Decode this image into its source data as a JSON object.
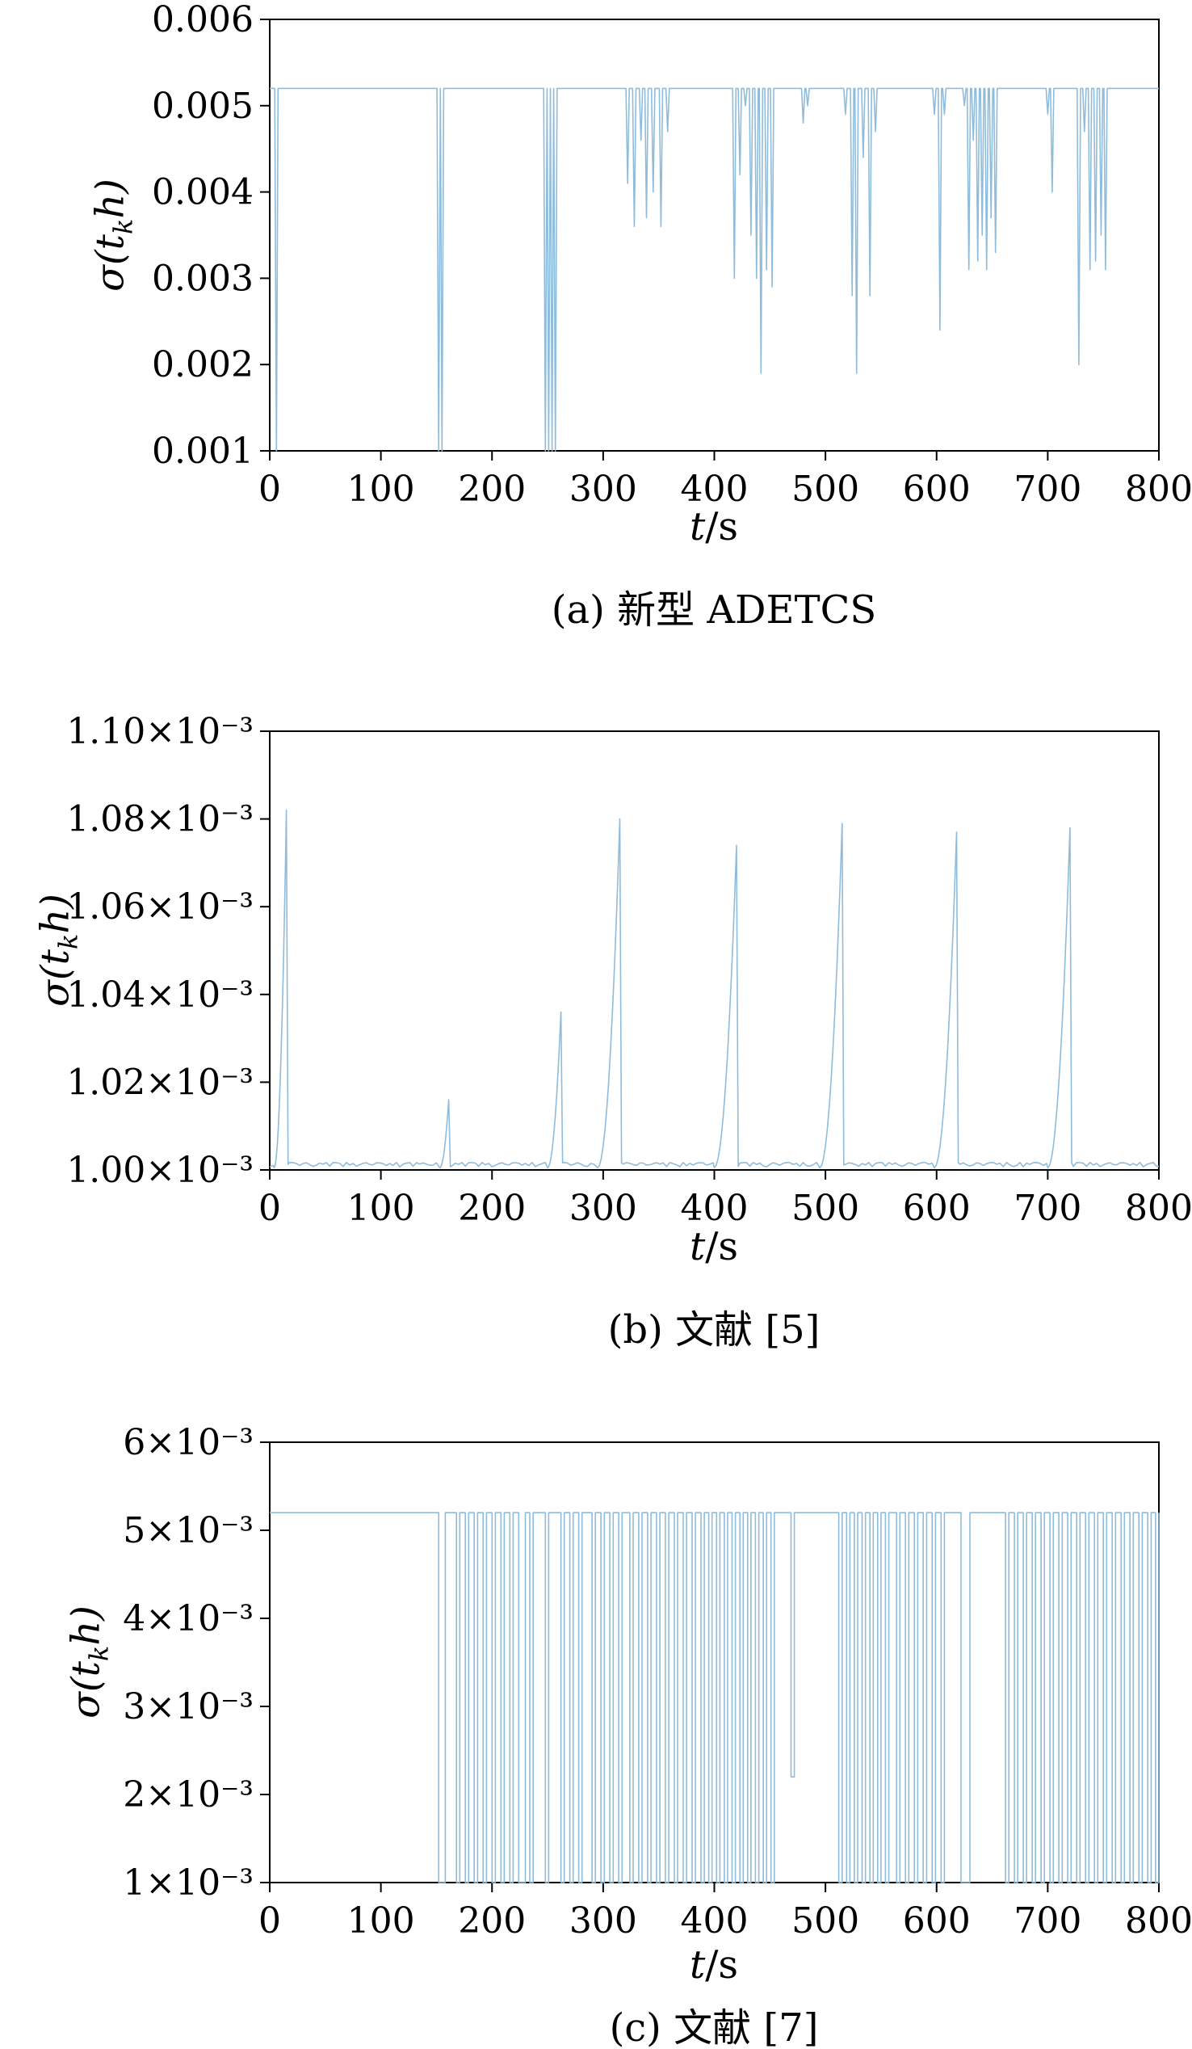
{
  "colors": {
    "line": "#8fbcdb",
    "axis": "#000000"
  },
  "axis_labels": {
    "y_pre": "σ(t",
    "y_sub": "k",
    "y_post": "h)",
    "x_italic": "t",
    "x_rest": "/s"
  },
  "chart_data": [
    {
      "type": "line",
      "subtype": "spikes",
      "title": "(a) 新型 ADETCS",
      "xlabel": "t/s",
      "ylabel": "σ(t_k h)",
      "xlim": [
        0,
        800
      ],
      "ylim": [
        0.001,
        0.006
      ],
      "xticks": [
        0,
        100,
        200,
        300,
        400,
        500,
        600,
        700,
        800
      ],
      "ytick_values": [
        0.001,
        0.002,
        0.003,
        0.004,
        0.005,
        0.006
      ],
      "ytick_labels": [
        "0.001",
        "0.002",
        "0.003",
        "0.004",
        "0.005",
        "0.006"
      ],
      "baseline": 0.0052,
      "spikes": [
        [
          6,
          0.001
        ],
        [
          152,
          0.001
        ],
        [
          155,
          0.001
        ],
        [
          248,
          0.001
        ],
        [
          251,
          0.001
        ],
        [
          254,
          0.001
        ],
        [
          257,
          0.001
        ],
        [
          322,
          0.0041
        ],
        [
          328,
          0.0036
        ],
        [
          334,
          0.0046
        ],
        [
          339,
          0.0037
        ],
        [
          345,
          0.004
        ],
        [
          352,
          0.0036
        ],
        [
          358,
          0.0047
        ],
        [
          418,
          0.003
        ],
        [
          423,
          0.0042
        ],
        [
          428,
          0.005
        ],
        [
          433,
          0.0035
        ],
        [
          438,
          0.003
        ],
        [
          442,
          0.0019
        ],
        [
          447,
          0.0031
        ],
        [
          452,
          0.0029
        ],
        [
          480,
          0.0048
        ],
        [
          484,
          0.005
        ],
        [
          518,
          0.0049
        ],
        [
          524,
          0.0028
        ],
        [
          528,
          0.0019
        ],
        [
          534,
          0.0044
        ],
        [
          540,
          0.0028
        ],
        [
          545,
          0.0047
        ],
        [
          598,
          0.0049
        ],
        [
          603,
          0.0024
        ],
        [
          607,
          0.0049
        ],
        [
          625,
          0.005
        ],
        [
          629,
          0.0031
        ],
        [
          633,
          0.0046
        ],
        [
          637,
          0.0032
        ],
        [
          641,
          0.0035
        ],
        [
          645,
          0.0031
        ],
        [
          649,
          0.0037
        ],
        [
          653,
          0.0033
        ],
        [
          700,
          0.0049
        ],
        [
          704,
          0.004
        ],
        [
          728,
          0.002
        ],
        [
          733,
          0.0047
        ],
        [
          738,
          0.0031
        ],
        [
          743,
          0.0032
        ],
        [
          748,
          0.0035
        ],
        [
          752,
          0.0031
        ]
      ]
    },
    {
      "type": "line",
      "subtype": "sawtooth",
      "title": "(b) 文献 [5]",
      "xlabel": "t/s",
      "ylabel": "σ(t_k h)",
      "xlim": [
        0,
        800
      ],
      "ylim": [
        0.001,
        0.0011
      ],
      "xticks": [
        0,
        100,
        200,
        300,
        400,
        500,
        600,
        700,
        800
      ],
      "ytick_values": [
        0.001,
        0.00102,
        0.00104,
        0.00106,
        0.00108,
        0.0011
      ],
      "ytick_labels": [
        "1.00×10⁻³",
        "1.02×10⁻³",
        "1.04×10⁻³",
        "1.06×10⁻³",
        "1.08×10⁻³",
        "1.10×10⁻³"
      ],
      "baseline": 0.0010005,
      "noise_amp": 1.2e-06,
      "peaks": [
        [
          4,
          15,
          0.001082
        ],
        [
          153,
          161,
          0.001016
        ],
        [
          250,
          262,
          0.001036
        ],
        [
          295,
          315,
          0.00108
        ],
        [
          400,
          420,
          0.001074
        ],
        [
          495,
          515,
          0.001079
        ],
        [
          598,
          618,
          0.001077
        ],
        [
          700,
          720,
          0.001078
        ]
      ]
    },
    {
      "type": "line",
      "subtype": "square",
      "title": "(c) 文献 [7]",
      "xlabel": "t/s",
      "ylabel": "σ(t_k h)",
      "xlim": [
        0,
        800
      ],
      "ylim": [
        0.001,
        0.006
      ],
      "xticks": [
        0,
        100,
        200,
        300,
        400,
        500,
        600,
        700,
        800
      ],
      "ytick_values": [
        0.001,
        0.002,
        0.003,
        0.004,
        0.005,
        0.006
      ],
      "ytick_labels": [
        "1×10⁻³",
        "2×10⁻³",
        "3×10⁻³",
        "4×10⁻³",
        "5×10⁻³",
        "6×10⁻³"
      ],
      "high": 0.0052,
      "low": 0.001,
      "drops": [
        [
          152,
          158
        ],
        [
          168,
          171
        ],
        [
          176,
          179
        ],
        [
          184,
          187
        ],
        [
          192,
          195
        ],
        [
          200,
          203
        ],
        [
          208,
          211
        ],
        [
          216,
          219
        ],
        [
          224,
          230
        ],
        [
          234,
          237
        ],
        [
          248,
          251
        ],
        [
          262,
          265
        ],
        [
          270,
          273
        ],
        [
          278,
          281
        ],
        [
          290,
          293
        ],
        [
          298,
          301
        ],
        [
          306,
          309
        ],
        [
          314,
          317
        ],
        [
          324,
          327
        ],
        [
          332,
          335
        ],
        [
          340,
          343
        ],
        [
          348,
          351
        ],
        [
          356,
          359
        ],
        [
          364,
          367
        ],
        [
          372,
          375
        ],
        [
          380,
          383
        ],
        [
          388,
          391
        ],
        [
          395,
          398
        ],
        [
          402,
          405
        ],
        [
          409,
          412
        ],
        [
          416,
          419
        ],
        [
          423,
          426
        ],
        [
          430,
          433
        ],
        [
          437,
          440
        ],
        [
          444,
          447
        ],
        [
          451,
          454
        ],
        [
          469,
          472,
          0.0022
        ],
        [
          512,
          515
        ],
        [
          519,
          522
        ],
        [
          526,
          529
        ],
        [
          533,
          536
        ],
        [
          540,
          543
        ],
        [
          547,
          550
        ],
        [
          554,
          557
        ],
        [
          564,
          567
        ],
        [
          572,
          575
        ],
        [
          580,
          583
        ],
        [
          588,
          591
        ],
        [
          596,
          599
        ],
        [
          604,
          607
        ],
        [
          622,
          630
        ],
        [
          662,
          665
        ],
        [
          670,
          673
        ],
        [
          678,
          681
        ],
        [
          686,
          689
        ],
        [
          694,
          697
        ],
        [
          702,
          705
        ],
        [
          710,
          713
        ],
        [
          718,
          721
        ],
        [
          726,
          729
        ],
        [
          734,
          737
        ],
        [
          742,
          745
        ],
        [
          750,
          753
        ],
        [
          758,
          761
        ],
        [
          766,
          769
        ],
        [
          774,
          777
        ],
        [
          782,
          785
        ],
        [
          790,
          793
        ],
        [
          797,
          800
        ]
      ]
    }
  ]
}
